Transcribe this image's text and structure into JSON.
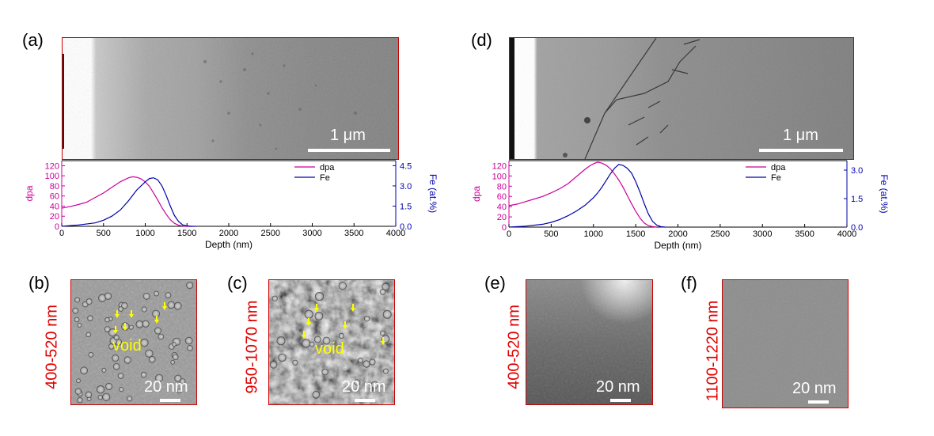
{
  "panels": {
    "a": {
      "label": "(a)",
      "scale": "1 μm"
    },
    "b": {
      "label": "(b)",
      "range": "400-520 nm",
      "scale": "20 nm",
      "annotation": "void"
    },
    "c": {
      "label": "(c)",
      "range": "950-1070 nm",
      "scale": "20 nm",
      "annotation": "void"
    },
    "d": {
      "label": "(d)",
      "scale": "1 μm"
    },
    "e": {
      "label": "(e)",
      "range": "400-520 nm",
      "scale": "20 nm"
    },
    "f": {
      "label": "(f)",
      "range": "1100-1220 nm",
      "scale": "20 nm"
    }
  },
  "colors": {
    "dpa": "#cc0099",
    "fe": "#0000aa",
    "frame": "#cc0000",
    "range_text": "#e00000",
    "void": "#ffff00"
  },
  "chart_data": [
    {
      "type": "line",
      "panel": "a",
      "xlabel": "Depth (nm)",
      "ylabel": "dpa",
      "y2label": "Fe (at.%)",
      "xlim": [
        0,
        4000
      ],
      "ylim": [
        0,
        130
      ],
      "y2lim": [
        0,
        4.875
      ],
      "xticks": [
        "0",
        "500",
        "1000",
        "1500",
        "2000",
        "2500",
        "3000",
        "3500",
        "4000"
      ],
      "yticks": [
        "0",
        "20",
        "40",
        "60",
        "80",
        "100",
        "120"
      ],
      "y2ticks": [
        "0.0",
        "1.5",
        "3.0",
        "4.5"
      ],
      "legend": "top-right",
      "series": [
        {
          "name": "dpa",
          "axis": "left",
          "color": "#cc0099",
          "x": [
            0,
            100,
            200,
            300,
            400,
            500,
            600,
            700,
            800,
            850,
            900,
            950,
            1000,
            1050,
            1100,
            1150,
            1200,
            1250,
            1300,
            1350,
            1400,
            1450,
            1500,
            1550
          ],
          "y": [
            36,
            39,
            43,
            48,
            57,
            66,
            77,
            88,
            96,
            98,
            97,
            94,
            88,
            79,
            66,
            52,
            37,
            24,
            13,
            6,
            2,
            0.5,
            0,
            0
          ]
        },
        {
          "name": "Fe",
          "axis": "right",
          "color": "#0000aa",
          "x": [
            0,
            200,
            400,
            500,
            600,
            700,
            800,
            850,
            900,
            950,
            1000,
            1050,
            1100,
            1150,
            1200,
            1250,
            1300,
            1350,
            1400,
            1450,
            1500,
            1550,
            1600
          ],
          "y": [
            0,
            0.1,
            0.25,
            0.45,
            0.75,
            1.2,
            1.9,
            2.3,
            2.7,
            3.0,
            3.3,
            3.55,
            3.6,
            3.45,
            3.0,
            2.3,
            1.5,
            0.8,
            0.35,
            0.1,
            0.03,
            0,
            0
          ]
        }
      ]
    },
    {
      "type": "line",
      "panel": "d",
      "xlabel": "Depth (nm)",
      "ylabel": "dpa",
      "y2label": "Fe (at.%)",
      "xlim": [
        0,
        4000
      ],
      "ylim": [
        0,
        130
      ],
      "y2lim": [
        0,
        3.5
      ],
      "xticks": [
        "0",
        "500",
        "1000",
        "1500",
        "2000",
        "2500",
        "3000",
        "3500",
        "4000"
      ],
      "yticks": [
        "0",
        "20",
        "40",
        "60",
        "80",
        "100",
        "120"
      ],
      "y2ticks": [
        "0.0",
        "1.5",
        "3.0"
      ],
      "legend": "top-right",
      "series": [
        {
          "name": "dpa",
          "axis": "left",
          "color": "#cc0099",
          "x": [
            0,
            100,
            200,
            300,
            400,
            500,
            600,
            700,
            800,
            900,
            950,
            1000,
            1050,
            1100,
            1150,
            1200,
            1250,
            1300,
            1350,
            1400,
            1450,
            1500,
            1550,
            1600,
            1650,
            1700,
            1750
          ],
          "y": [
            42,
            45,
            50,
            55,
            60,
            67,
            75,
            85,
            99,
            113,
            119,
            124,
            127,
            125,
            121,
            114,
            104,
            92,
            78,
            62,
            46,
            31,
            18,
            8,
            3,
            1,
            0
          ]
        },
        {
          "name": "Fe",
          "axis": "right",
          "color": "#0000aa",
          "x": [
            0,
            200,
            400,
            500,
            600,
            700,
            800,
            900,
            1000,
            1050,
            1100,
            1150,
            1200,
            1250,
            1300,
            1350,
            1400,
            1450,
            1500,
            1550,
            1600,
            1650,
            1700,
            1750,
            1800,
            1850
          ],
          "y": [
            0,
            0.05,
            0.15,
            0.25,
            0.4,
            0.6,
            0.85,
            1.15,
            1.55,
            1.8,
            2.1,
            2.45,
            2.8,
            3.1,
            3.3,
            3.25,
            3.1,
            2.85,
            2.4,
            1.85,
            1.25,
            0.7,
            0.3,
            0.1,
            0.02,
            0
          ]
        }
      ]
    }
  ]
}
